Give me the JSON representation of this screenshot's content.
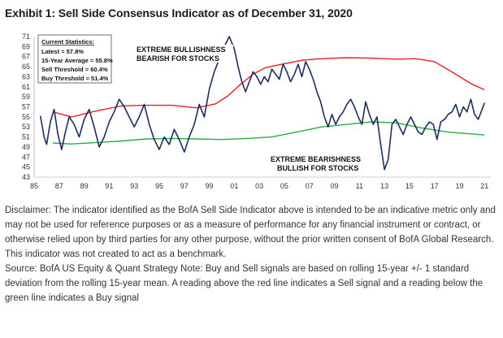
{
  "header": {
    "title": "Exhibit 1: Sell Side Consensus Indicator as of December 31, 2020"
  },
  "stats_box": {
    "heading": "Current Statistics:",
    "lines": [
      "Latest = 57.8%",
      "15-Year Average = 55.8%",
      "Sell Threshold = 60.4%",
      "Buy Threshold = 51.4%"
    ]
  },
  "annotations": {
    "top": [
      "EXTREME BULLISHNESS",
      "BEARISH FOR STOCKS"
    ],
    "bottom": [
      "EXTREME BEARISHNESS",
      "BULLISH FOR STOCKS"
    ]
  },
  "notes": {
    "disclaimer": "Disclaimer: The indicator identified as the BofA Sell Side Indicator above is intended to be an indicative metric only and may not be used for reference purposes or as a measure of performance for any financial instrument or contract, or otherwise relied upon by third parties for any other purpose, without the prior written consent of BofA Global Research. This indicator was not created to act as a benchmark.",
    "source": "Source: BofA US Equity & Quant Strategy Note: Buy and Sell signals are based on rolling 15-year +/- 1 standard deviation from the rolling 15-year mean. A reading above the red line indicates a Sell signal and a reading below the green line indicates a Buy signal"
  },
  "colors": {
    "indicator": "#1c2f5c",
    "sell": "#e8202a",
    "buy": "#27ae4a"
  },
  "chart_data": {
    "type": "line",
    "title": "Exhibit 1: Sell Side Consensus Indicator as of December 31, 2020",
    "xlabel": "",
    "ylabel": "",
    "xlim": [
      1985,
      2021.5
    ],
    "ylim": [
      43,
      71
    ],
    "x_ticks": [
      "85",
      "87",
      "89",
      "91",
      "93",
      "95",
      "97",
      "99",
      "01",
      "03",
      "05",
      "07",
      "09",
      "11",
      "13",
      "15",
      "17",
      "19",
      "21"
    ],
    "y_ticks": [
      43,
      45,
      47,
      49,
      51,
      53,
      55,
      57,
      59,
      61,
      63,
      65,
      67,
      69,
      71
    ],
    "grid": false,
    "legend": "none",
    "series": [
      {
        "role": "indicator",
        "x": [
          1985.5,
          1985.8,
          1986.0,
          1986.3,
          1986.6,
          1986.9,
          1987.2,
          1987.5,
          1987.8,
          1988.2,
          1988.6,
          1989.0,
          1989.4,
          1989.8,
          1990.2,
          1990.6,
          1991.0,
          1991.4,
          1991.8,
          1992.2,
          1992.6,
          1993.0,
          1993.4,
          1993.8,
          1994.2,
          1994.6,
          1995.0,
          1995.4,
          1995.8,
          1996.2,
          1996.6,
          1997.0,
          1997.4,
          1997.8,
          1998.2,
          1998.6,
          1999.0,
          1999.4,
          1999.8,
          2000.2,
          2000.6,
          2001.0,
          2001.3,
          2001.6,
          2001.9,
          2002.2,
          2002.5,
          2002.8,
          2003.1,
          2003.4,
          2003.7,
          2004.0,
          2004.3,
          2004.6,
          2004.9,
          2005.2,
          2005.5,
          2005.8,
          2006.1,
          2006.4,
          2006.7,
          2007.0,
          2007.3,
          2007.6,
          2007.9,
          2008.2,
          2008.5,
          2008.8,
          2009.1,
          2009.4,
          2009.7,
          2010.0,
          2010.3,
          2010.6,
          2010.9,
          2011.2,
          2011.5,
          2011.8,
          2012.1,
          2012.4,
          2012.7,
          2013.0,
          2013.3,
          2013.6,
          2013.9,
          2014.2,
          2014.5,
          2014.8,
          2015.1,
          2015.4,
          2015.7,
          2016.0,
          2016.3,
          2016.6,
          2016.9,
          2017.2,
          2017.5,
          2017.8,
          2018.1,
          2018.4,
          2018.7,
          2019.0,
          2019.3,
          2019.6,
          2019.9,
          2020.2,
          2020.5,
          2020.8,
          2021.0
        ],
        "values": [
          55.2,
          51.0,
          49.5,
          54.0,
          56.5,
          51.5,
          48.5,
          52.0,
          55.0,
          53.5,
          51.0,
          54.5,
          56.5,
          53.0,
          49.0,
          51.0,
          54.0,
          56.0,
          58.5,
          57.0,
          55.0,
          53.0,
          55.0,
          57.5,
          53.5,
          50.5,
          48.5,
          51.0,
          49.5,
          52.5,
          50.5,
          48.0,
          51.0,
          53.5,
          57.5,
          55.0,
          60.5,
          64.0,
          66.5,
          69.0,
          71.0,
          68.5,
          65.0,
          62.0,
          60.0,
          62.0,
          64.0,
          63.0,
          61.5,
          63.0,
          62.0,
          64.5,
          63.5,
          62.5,
          65.5,
          64.0,
          62.0,
          63.5,
          65.5,
          63.0,
          66.0,
          64.5,
          62.5,
          60.0,
          58.0,
          55.0,
          53.0,
          55.5,
          53.5,
          55.0,
          56.0,
          57.5,
          58.5,
          57.0,
          55.0,
          53.5,
          58.0,
          55.5,
          53.5,
          55.0,
          49.5,
          44.5,
          46.5,
          53.5,
          54.5,
          53.0,
          51.5,
          53.5,
          55.0,
          53.5,
          52.0,
          51.5,
          53.0,
          54.0,
          53.5,
          50.5,
          54.0,
          54.5,
          55.5,
          56.0,
          57.5,
          55.0,
          57.0,
          56.0,
          58.5,
          55.5,
          54.5,
          56.5,
          57.8
        ]
      },
      {
        "role": "sell",
        "x": [
          1986.5,
          1988,
          1990,
          1992,
          1994,
          1996,
          1998,
          1999.5,
          2000.5,
          2001.5,
          2002.5,
          2003.5,
          2005,
          2006.5,
          2008,
          2010,
          2012,
          2014,
          2015.5,
          2017,
          2018.5,
          2020,
          2021
        ],
        "values": [
          56.0,
          55.0,
          56.2,
          57.2,
          57.3,
          57.3,
          56.8,
          57.6,
          59.2,
          61.5,
          63.5,
          64.8,
          65.6,
          66.3,
          66.6,
          66.8,
          66.7,
          66.5,
          66.6,
          66.0,
          63.8,
          61.5,
          60.4
        ]
      },
      {
        "role": "buy",
        "x": [
          1986.5,
          1988,
          1990,
          1992,
          1994,
          1996,
          1998,
          2000,
          2002,
          2004,
          2006,
          2008,
          2010,
          2012,
          2014,
          2016,
          2018,
          2020,
          2021
        ],
        "values": [
          49.8,
          49.6,
          49.9,
          50.2,
          50.6,
          50.7,
          50.6,
          50.5,
          50.7,
          51.0,
          52.0,
          53.0,
          53.5,
          54.0,
          53.8,
          52.8,
          52.0,
          51.6,
          51.4
        ]
      }
    ]
  }
}
